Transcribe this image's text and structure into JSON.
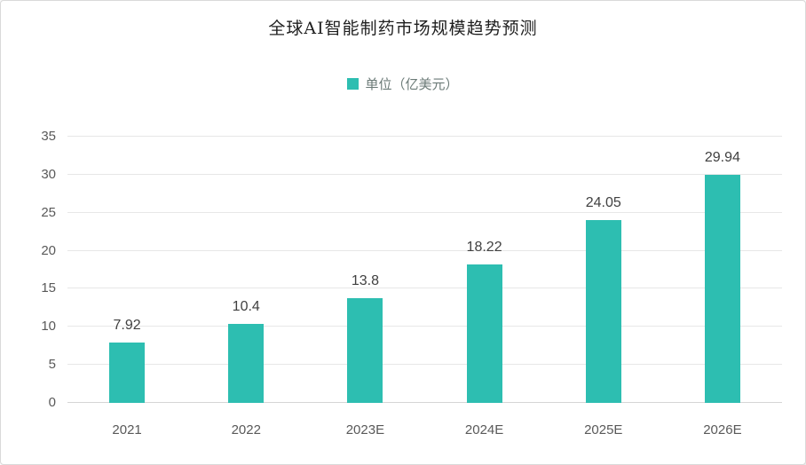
{
  "chart_data": {
    "type": "bar",
    "title": "全球AI智能制药市场规模趋势预测",
    "legend": "单位（亿美元）",
    "categories": [
      "2021",
      "2022",
      "2023E",
      "2024E",
      "2025E",
      "2026E"
    ],
    "values": [
      7.92,
      10.4,
      13.8,
      18.22,
      24.05,
      29.94
    ],
    "value_labels": [
      "7.92",
      "10.4",
      "13.8",
      "18.22",
      "24.05",
      "29.94"
    ],
    "xlabel": "",
    "ylabel": "",
    "ylim": [
      0,
      35
    ],
    "yticks": [
      0,
      5,
      10,
      15,
      20,
      25,
      30,
      35
    ],
    "grid": true,
    "legend_position": "top"
  },
  "colors": {
    "bar": "#2DBEB1",
    "grid": "#e7e7e7",
    "axisline": "#d5d5d5",
    "tick": "#595959",
    "value": "#404040",
    "title": "#1f1f1f",
    "legendtext": "#6b7a77"
  }
}
